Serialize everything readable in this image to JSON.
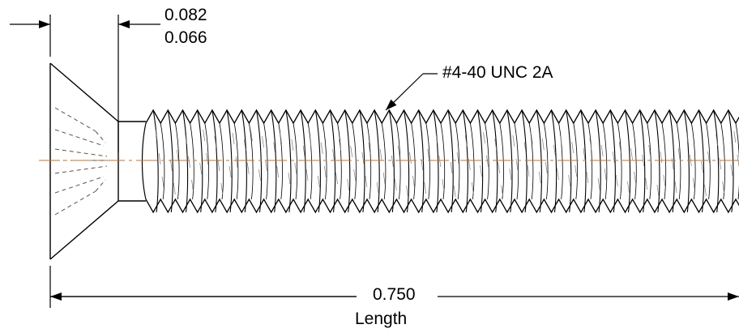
{
  "head_height_dimension": {
    "max": "0.082",
    "min": "0.066"
  },
  "thread_callout": "#4-40 UNC 2A",
  "length_dimension": {
    "value": "0.750",
    "caption": "Length"
  },
  "colors": {
    "line": "#000000",
    "centerline": "#c8702a",
    "hidden": "#555555",
    "hatch": "#777777"
  }
}
